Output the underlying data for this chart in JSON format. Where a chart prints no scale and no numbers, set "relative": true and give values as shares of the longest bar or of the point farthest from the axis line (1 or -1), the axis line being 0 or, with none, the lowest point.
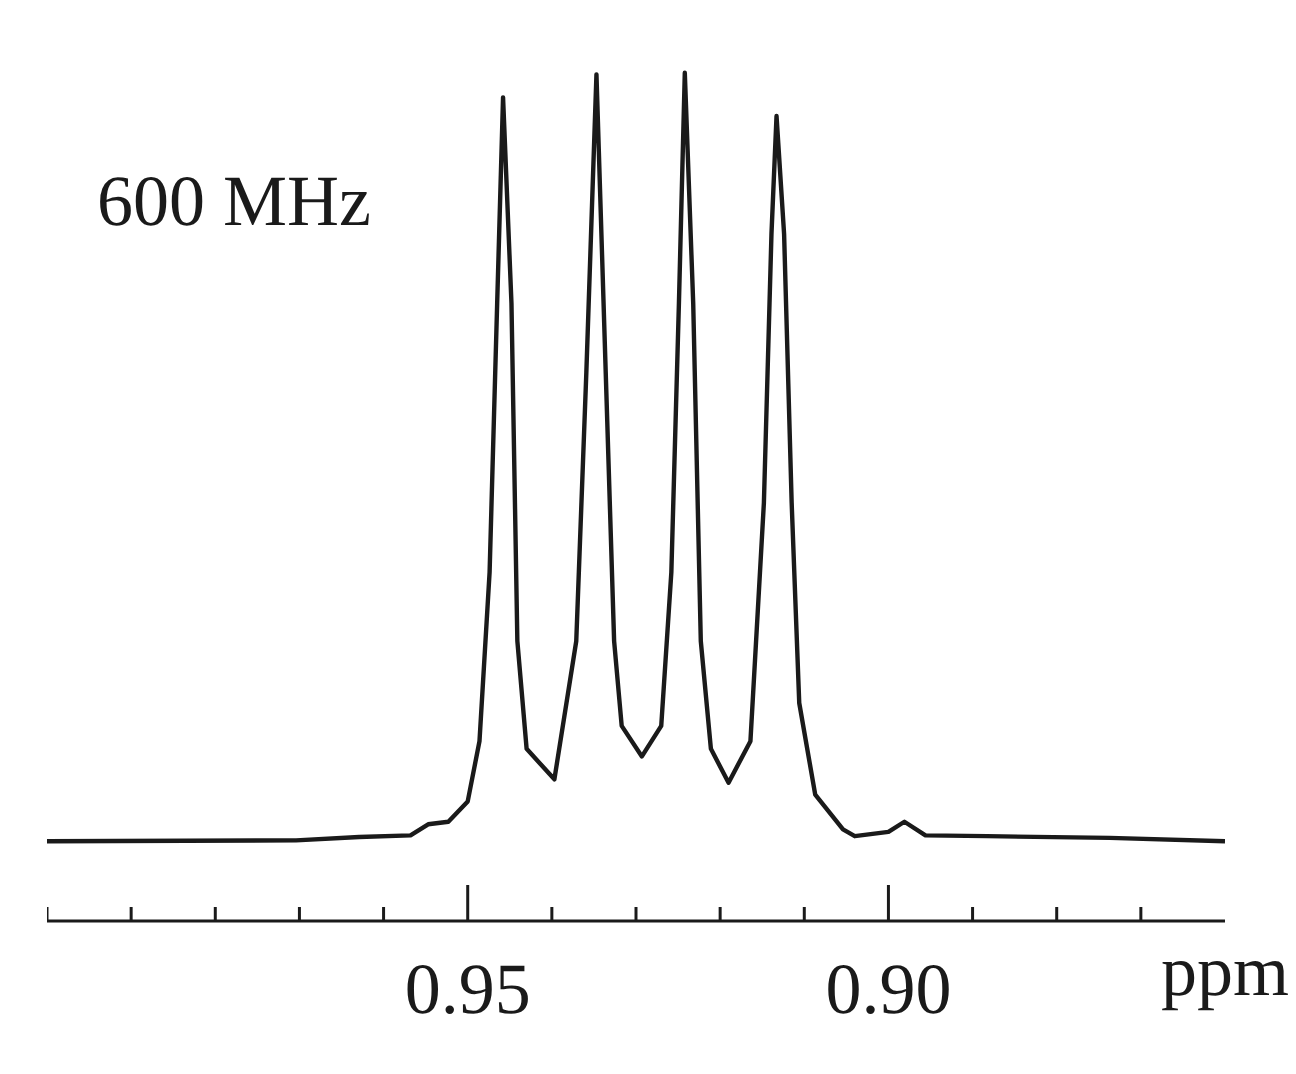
{
  "chart_data": {
    "type": "line",
    "relative": true,
    "xlabel": "ppm",
    "annotations": [
      "600 MHz"
    ],
    "xlim": [
      1.0,
      0.86
    ],
    "xticks": [
      {
        "value": 1.0,
        "label": null
      },
      {
        "value": 0.99,
        "label": null
      },
      {
        "value": 0.98,
        "label": null
      },
      {
        "value": 0.97,
        "label": null
      },
      {
        "value": 0.96,
        "label": null
      },
      {
        "value": 0.95,
        "label": "0.95"
      },
      {
        "value": 0.94,
        "label": null
      },
      {
        "value": 0.93,
        "label": null
      },
      {
        "value": 0.92,
        "label": null
      },
      {
        "value": 0.91,
        "label": null
      },
      {
        "value": 0.9,
        "label": "0.90"
      },
      {
        "value": 0.89,
        "label": null
      },
      {
        "value": 0.88,
        "label": null
      },
      {
        "value": 0.87,
        "label": null
      }
    ],
    "grid": false,
    "line_style": "solid",
    "series": [
      {
        "color": "#1a1a1a",
        "x": [
          1.0,
          0.9704,
          0.9629,
          0.9568,
          0.9547,
          0.9523,
          0.95,
          0.9486,
          0.9474,
          0.9465,
          0.9458,
          0.9448,
          0.9441,
          0.943,
          0.9397,
          0.9371,
          0.9359,
          0.9347,
          0.9336,
          0.9326,
          0.9317,
          0.9293,
          0.927,
          0.9258,
          0.9249,
          0.9242,
          0.9232,
          0.9223,
          0.9211,
          0.919,
          0.9164,
          0.9148,
          0.9139,
          0.9133,
          0.9124,
          0.9115,
          0.9106,
          0.9087,
          0.9054,
          0.904,
          0.9,
          0.8981,
          0.8956,
          0.8883,
          0.8737,
          0.86
        ],
        "values": [
          0.094,
          0.095,
          0.099,
          0.101,
          0.114,
          0.117,
          0.141,
          0.212,
          0.411,
          0.728,
          0.971,
          0.728,
          0.33,
          0.203,
          0.167,
          0.33,
          0.647,
          0.998,
          0.647,
          0.33,
          0.23,
          0.194,
          0.23,
          0.411,
          0.728,
          1.0,
          0.728,
          0.33,
          0.203,
          0.163,
          0.212,
          0.493,
          0.81,
          0.949,
          0.81,
          0.493,
          0.257,
          0.149,
          0.108,
          0.1,
          0.105,
          0.117,
          0.101,
          0.1,
          0.098,
          0.094
        ]
      }
    ]
  }
}
